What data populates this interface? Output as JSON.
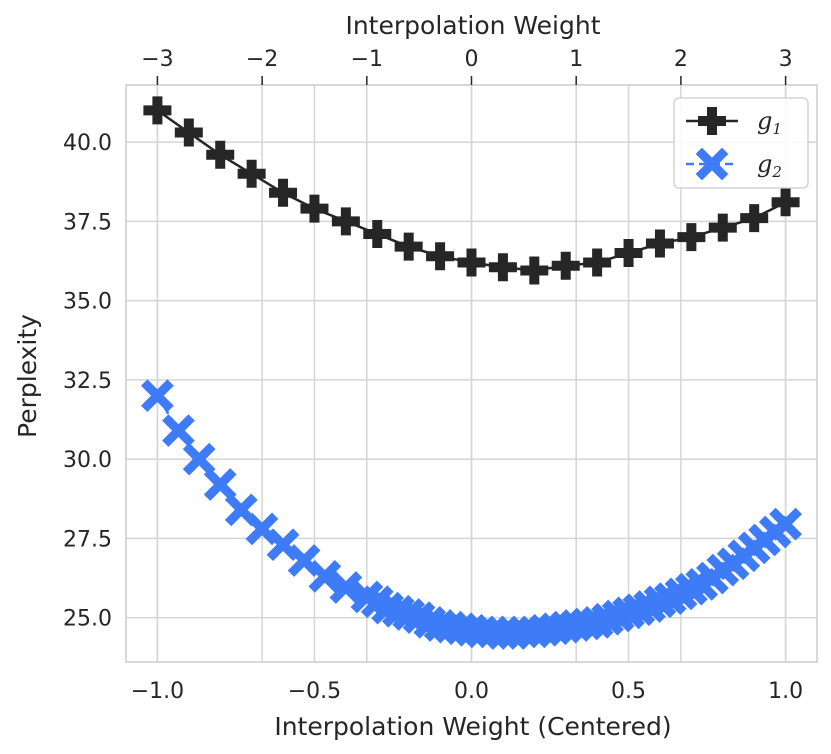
{
  "chart_data": {
    "type": "line",
    "xlabel": "Interpolation Weight (Centered)",
    "ylabel": "Perplexity",
    "top_xlabel": "Interpolation Weight",
    "xlim": [
      -1.1,
      1.1
    ],
    "ylim": [
      23.6,
      41.8
    ],
    "top_xlim": [
      -3.3,
      3.3
    ],
    "x_ticks": [
      "−1.0",
      "−0.5",
      "0.0",
      "0.5",
      "1.0"
    ],
    "x_tick_values": [
      -1.0,
      -0.5,
      0.0,
      0.5,
      1.0
    ],
    "y_ticks": [
      "25.0",
      "27.5",
      "30.0",
      "32.5",
      "35.0",
      "37.5",
      "40.0"
    ],
    "y_tick_values": [
      25.0,
      27.5,
      30.0,
      32.5,
      35.0,
      37.5,
      40.0
    ],
    "top_x_ticks": [
      "−3",
      "−2",
      "−1",
      "0",
      "1",
      "2",
      "3"
    ],
    "top_x_tick_values": [
      -3,
      -2,
      -1,
      0,
      1,
      2,
      3
    ],
    "grid": true,
    "legend_position": "top-right",
    "series": [
      {
        "name": "g1",
        "legend_base": "g",
        "legend_sub": "1",
        "marker": "plus",
        "color": "#262626",
        "x": [
          -1.0,
          -0.9,
          -0.8,
          -0.7,
          -0.6,
          -0.5,
          -0.4,
          -0.3,
          -0.2,
          -0.1,
          0.0,
          0.1,
          0.2,
          0.3,
          0.4,
          0.5,
          0.6,
          0.7,
          0.8,
          0.9,
          1.0
        ],
        "values": [
          41.0,
          40.3,
          39.6,
          39.0,
          38.4,
          37.9,
          37.5,
          37.1,
          36.7,
          36.4,
          36.2,
          36.05,
          35.95,
          36.1,
          36.2,
          36.5,
          36.8,
          37.0,
          37.3,
          37.6,
          38.1
        ]
      },
      {
        "name": "g2",
        "legend_base": "g",
        "legend_sub": "2",
        "marker": "x",
        "color": "#3d7bf7",
        "x": [
          -1.0,
          -0.933,
          -0.867,
          -0.8,
          -0.733,
          -0.667,
          -0.6,
          -0.533,
          -0.467,
          -0.4,
          -0.333,
          -0.3,
          -0.267,
          -0.233,
          -0.2,
          -0.167,
          -0.133,
          -0.1,
          -0.067,
          -0.033,
          0.0,
          0.033,
          0.067,
          0.1,
          0.133,
          0.167,
          0.2,
          0.233,
          0.267,
          0.3,
          0.333,
          0.367,
          0.4,
          0.433,
          0.467,
          0.5,
          0.533,
          0.567,
          0.6,
          0.633,
          0.667,
          0.7,
          0.733,
          0.767,
          0.8,
          0.833,
          0.867,
          0.9,
          0.933,
          0.967,
          1.0
        ],
        "values": [
          32.0,
          30.9,
          30.0,
          29.2,
          28.4,
          27.8,
          27.3,
          26.8,
          26.3,
          25.95,
          25.65,
          25.5,
          25.3,
          25.2,
          25.1,
          25.0,
          24.85,
          24.75,
          24.7,
          24.65,
          24.6,
          24.55,
          24.55,
          24.5,
          24.5,
          24.55,
          24.55,
          24.6,
          24.65,
          24.7,
          24.75,
          24.8,
          24.85,
          24.95,
          25.05,
          25.15,
          25.25,
          25.35,
          25.5,
          25.6,
          25.75,
          25.9,
          26.05,
          26.25,
          26.5,
          26.7,
          26.95,
          27.2,
          27.45,
          27.7,
          27.95
        ]
      }
    ]
  }
}
